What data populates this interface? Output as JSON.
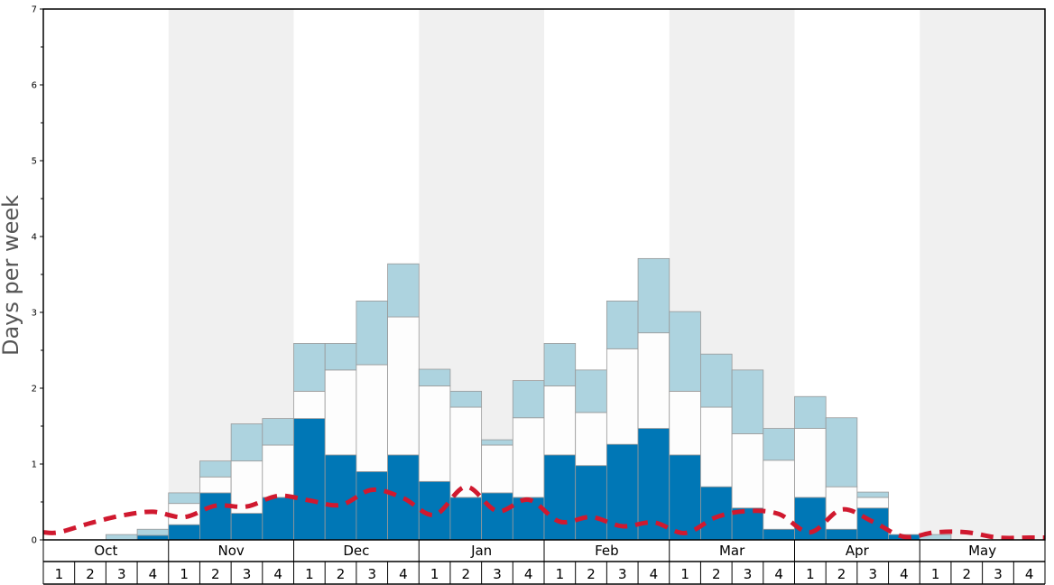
{
  "chart_data": {
    "type": "bar",
    "ylabel": "Days per week",
    "ylim": [
      0,
      7
    ],
    "y_ticks": [
      "0",
      "1",
      "2",
      "3",
      "4",
      "5",
      "6",
      "7"
    ],
    "months": [
      "Oct",
      "Nov",
      "Dec",
      "Jan",
      "Feb",
      "Mar",
      "Apr",
      "May"
    ],
    "weeks_per_month": [
      "1",
      "2",
      "3",
      "4"
    ],
    "stacked": true,
    "series": [
      {
        "color": "#0077b6",
        "values": [
          0,
          0,
          0,
          0.06,
          0.2,
          0.62,
          0.35,
          0.56,
          1.6,
          1.12,
          0.9,
          1.12,
          0.77,
          0.56,
          0.62,
          0.56,
          1.12,
          0.98,
          1.26,
          1.47,
          1.12,
          0.7,
          0.42,
          0.14,
          0.56,
          0.14,
          0.42,
          0.07,
          0,
          0,
          0,
          0
        ]
      },
      {
        "color": "#fdfdfd",
        "values": [
          0,
          0,
          0,
          0,
          0.28,
          0.21,
          0.69,
          0.69,
          0.36,
          1.12,
          1.41,
          1.82,
          1.26,
          1.19,
          0.63,
          1.05,
          0.91,
          0.7,
          1.26,
          1.26,
          0.84,
          1.05,
          0.98,
          0.91,
          0.91,
          0.56,
          0.14,
          0,
          0,
          0,
          0,
          0
        ]
      },
      {
        "color": "#add3df",
        "values": [
          0,
          0,
          0.07,
          0.08,
          0.14,
          0.21,
          0.49,
          0.35,
          0.63,
          0.35,
          0.84,
          0.7,
          0.22,
          0.21,
          0.07,
          0.49,
          0.56,
          0.56,
          0.63,
          0.98,
          1.05,
          0.7,
          0.84,
          0.42,
          0.42,
          0.91,
          0.07,
          0,
          0.07,
          0,
          0,
          0
        ]
      }
    ],
    "average_line": {
      "color": "#d0192f",
      "style": "dashed",
      "values": [
        0.1,
        0.22,
        0.32,
        0.37,
        0.3,
        0.45,
        0.44,
        0.58,
        0.52,
        0.46,
        0.66,
        0.55,
        0.33,
        0.7,
        0.38,
        0.53,
        0.24,
        0.3,
        0.18,
        0.23,
        0.09,
        0.3,
        0.38,
        0.34,
        0.1,
        0.4,
        0.24,
        0.04,
        0.1,
        0.1,
        0.03,
        0.03
      ]
    },
    "shaded_months": [
      "Nov",
      "Jan",
      "Mar",
      "May"
    ],
    "colors": {
      "shade": "#f0f0f0",
      "bar_edge": "#999999",
      "frame": "#000000",
      "axis_text": "#000000",
      "ylabel": "#555555"
    },
    "grid": false,
    "legend": "none"
  }
}
